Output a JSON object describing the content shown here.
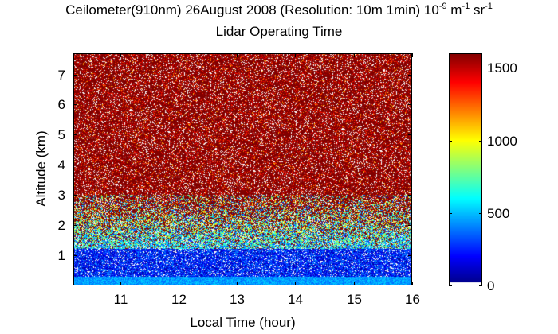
{
  "chart_data": {
    "type": "heatmap",
    "title": {
      "prefix": "Ceilometer(910nm) 26August 2008 (Resolution: 10m 1min) 10",
      "exp1": "-9",
      "mid": " m",
      "exp2": "-1",
      "mid2": " sr",
      "exp3": "-1"
    },
    "subtitle": "Lidar Operating Time",
    "xlabel": "Local Time (hour)",
    "ylabel": "Altitude (km)",
    "xlim": [
      10.2,
      16
    ],
    "ylim": [
      0,
      7.7
    ],
    "xticks": [
      "11",
      "12",
      "13",
      "14",
      "15",
      "16"
    ],
    "xtick_values": [
      11,
      12,
      13,
      14,
      15,
      16
    ],
    "yticks": [
      "1",
      "2",
      "3",
      "4",
      "5",
      "6",
      "7"
    ],
    "ytick_values": [
      1,
      2,
      3,
      4,
      5,
      6,
      7
    ],
    "colorbar": {
      "range": [
        0,
        1600
      ],
      "ticks": [
        "0",
        "500",
        "1000",
        "1500"
      ],
      "tick_values": [
        0,
        500,
        1000,
        1500
      ],
      "colormap": "jet"
    },
    "profile_description": {
      "near_surface_km": [
        0,
        0.3
      ],
      "near_surface_value": 450,
      "low_value_band_km": [
        0.3,
        1.2
      ],
      "low_value_band_value": 150,
      "transition_km": [
        1.2,
        3.0
      ],
      "saturated_above_km": 3.0,
      "saturated_value": 1600
    }
  }
}
